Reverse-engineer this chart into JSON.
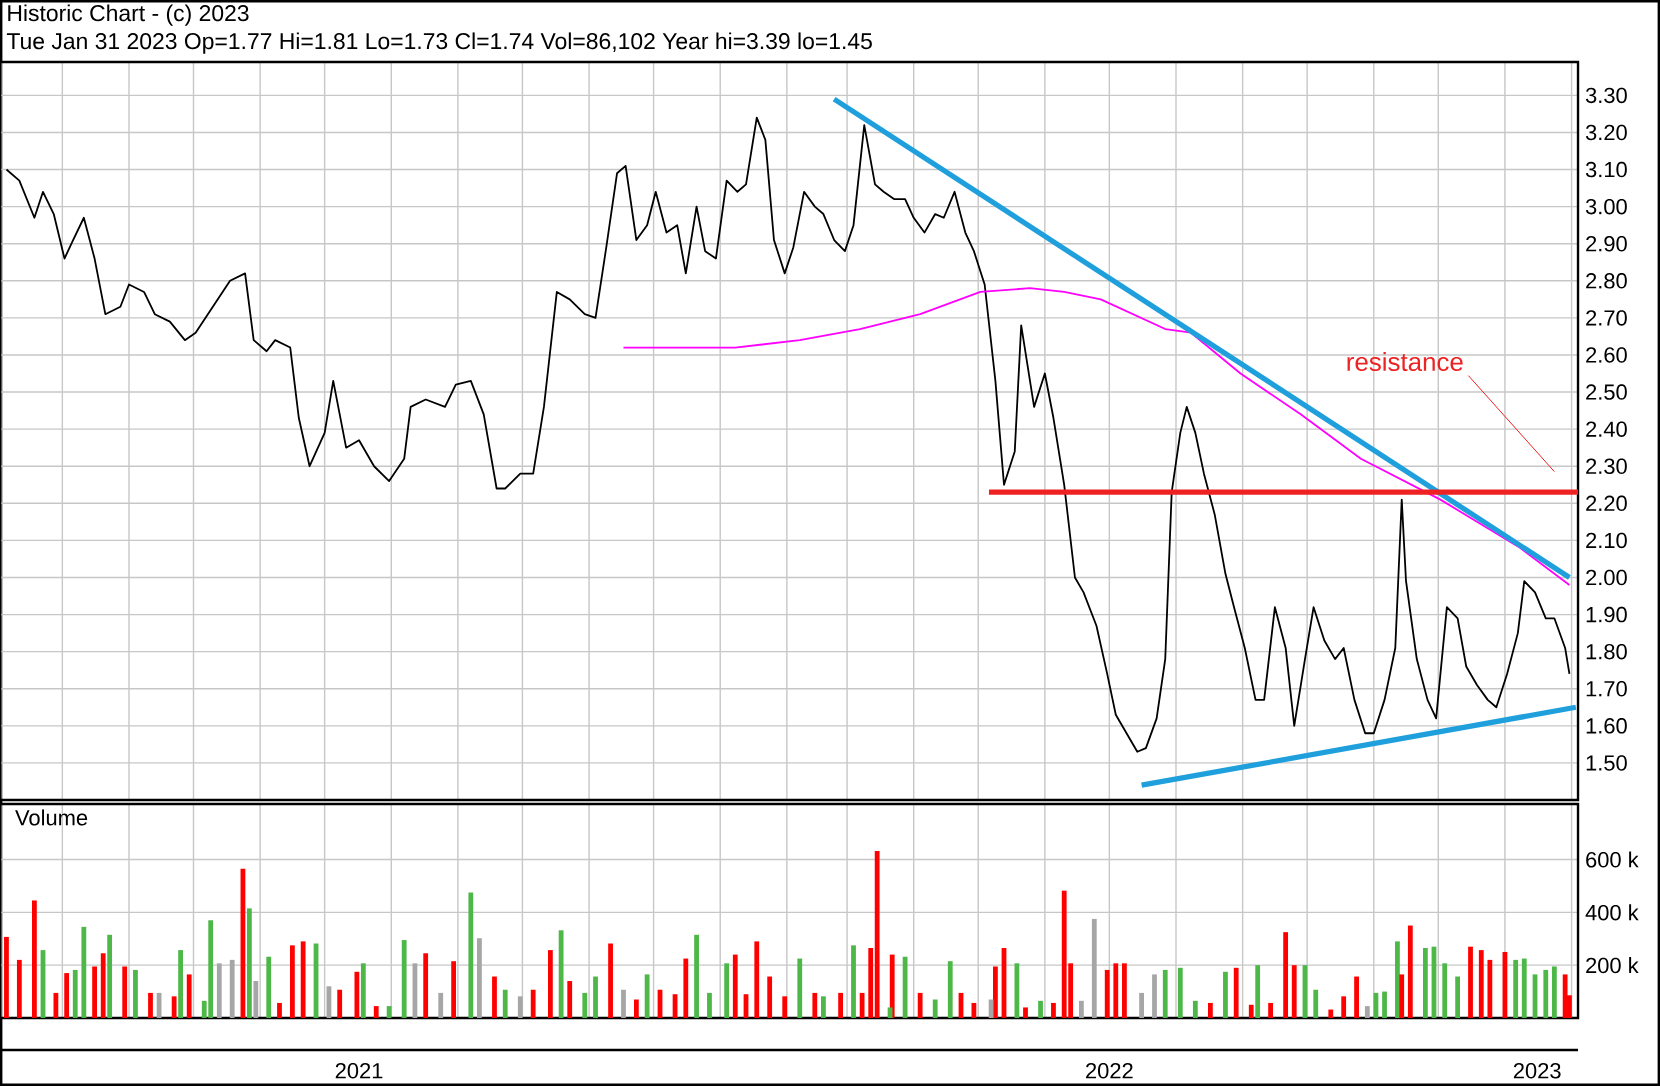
{
  "chart_data": [
    {
      "type": "line",
      "title": "Historic Chart - (c) 2023",
      "subtitle": "Tue Jan 31 2023 Op=1.77 Hi=1.81 Lo=1.73 Cl=1.74 Vol=86,102 Year hi=3.39 lo=1.45",
      "xlim": [
        "2021-01-31",
        "2023-02-04"
      ],
      "ylim": [
        1.4,
        3.39
      ],
      "grid": true,
      "tick_labels": "y",
      "xticks": [
        {
          "value": "2021-02-01",
          "label": null
        },
        {
          "value": "2021-03-01",
          "label": null
        },
        {
          "value": "2021-04-01",
          "label": null
        },
        {
          "value": "2021-05-01",
          "label": null
        },
        {
          "value": "2021-06-01",
          "label": null
        },
        {
          "value": "2021-07-01",
          "label": null
        },
        {
          "value": "2021-08-01",
          "label": null
        },
        {
          "value": "2021-09-01",
          "label": null
        },
        {
          "value": "2021-10-01",
          "label": null
        },
        {
          "value": "2021-11-01",
          "label": null
        },
        {
          "value": "2021-12-01",
          "label": null
        },
        {
          "value": "2022-01-01",
          "label": null
        },
        {
          "value": "2022-02-01",
          "label": null
        },
        {
          "value": "2022-03-01",
          "label": null
        },
        {
          "value": "2022-04-01",
          "label": null
        },
        {
          "value": "2022-05-01",
          "label": null
        },
        {
          "value": "2022-06-01",
          "label": null
        },
        {
          "value": "2022-07-01",
          "label": null
        },
        {
          "value": "2022-08-01",
          "label": null
        },
        {
          "value": "2022-09-01",
          "label": null
        },
        {
          "value": "2022-10-01",
          "label": null
        },
        {
          "value": "2022-11-01",
          "label": null
        },
        {
          "value": "2022-12-01",
          "label": null
        },
        {
          "value": "2023-01-01",
          "label": null
        },
        {
          "value": "2023-02-01",
          "label": null
        }
      ],
      "yticks": [
        {
          "value": 1.5,
          "label": "1.50"
        },
        {
          "value": 1.6,
          "label": "1.60"
        },
        {
          "value": 1.7,
          "label": "1.70"
        },
        {
          "value": 1.8,
          "label": "1.80"
        },
        {
          "value": 1.9,
          "label": "1.90"
        },
        {
          "value": 2.0,
          "label": "2.00"
        },
        {
          "value": 2.1,
          "label": "2.10"
        },
        {
          "value": 2.2,
          "label": "2.20"
        },
        {
          "value": 2.3,
          "label": "2.30"
        },
        {
          "value": 2.4,
          "label": "2.40"
        },
        {
          "value": 2.5,
          "label": "2.50"
        },
        {
          "value": 2.6,
          "label": "2.60"
        },
        {
          "value": 2.7,
          "label": "2.70"
        },
        {
          "value": 2.8,
          "label": "2.80"
        },
        {
          "value": 2.9,
          "label": "2.90"
        },
        {
          "value": 3.0,
          "label": "3.00"
        },
        {
          "value": 3.1,
          "label": "3.10"
        },
        {
          "value": 3.2,
          "label": "3.20"
        },
        {
          "value": 3.3,
          "label": "3.30"
        }
      ],
      "annotations": [
        "resistance"
      ],
      "series": [
        {
          "color": "#000000",
          "x": [
            "2021-02-03",
            "2021-02-09",
            "2021-02-16",
            "2021-02-20",
            "2021-02-25",
            "2021-03-02",
            "2021-03-06",
            "2021-03-11",
            "2021-03-16",
            "2021-03-21",
            "2021-03-28",
            "2021-04-01",
            "2021-04-08",
            "2021-04-13",
            "2021-04-20",
            "2021-04-27",
            "2021-05-02",
            "2021-05-10",
            "2021-05-18",
            "2021-05-25",
            "2021-05-29",
            "2021-06-04",
            "2021-06-08",
            "2021-06-15",
            "2021-06-19",
            "2021-06-24",
            "2021-07-01",
            "2021-07-05",
            "2021-07-11",
            "2021-07-17",
            "2021-07-24",
            "2021-07-31",
            "2021-08-07",
            "2021-08-10",
            "2021-08-17",
            "2021-08-26",
            "2021-08-31",
            "2021-09-07",
            "2021-09-13",
            "2021-09-19",
            "2021-09-23",
            "2021-09-30",
            "2021-10-06",
            "2021-10-11",
            "2021-10-17",
            "2021-10-23",
            "2021-10-30",
            "2021-11-04",
            "2021-11-09",
            "2021-11-14",
            "2021-11-18",
            "2021-11-23",
            "2021-11-28",
            "2021-12-02",
            "2021-12-07",
            "2021-12-12",
            "2021-12-16",
            "2021-12-21",
            "2021-12-25",
            "2021-12-30",
            "2022-01-04",
            "2022-01-09",
            "2022-01-13",
            "2022-01-18",
            "2022-01-22",
            "2022-01-26",
            "2022-01-31",
            "2022-02-04",
            "2022-02-09",
            "2022-02-14",
            "2022-02-18",
            "2022-02-23",
            "2022-02-28",
            "2022-03-04",
            "2022-03-09",
            "2022-03-14",
            "2022-03-18",
            "2022-03-23",
            "2022-03-28",
            "2022-04-01",
            "2022-04-06",
            "2022-04-11",
            "2022-04-15",
            "2022-04-20",
            "2022-04-25",
            "2022-04-29",
            "2022-05-04",
            "2022-05-09",
            "2022-05-13",
            "2022-05-18",
            "2022-05-21",
            "2022-05-27",
            "2022-06-01",
            "2022-06-05",
            "2022-06-10",
            "2022-06-15",
            "2022-06-19",
            "2022-06-25",
            "2022-06-30",
            "2022-07-04",
            "2022-07-09",
            "2022-07-14",
            "2022-07-18",
            "2022-07-23",
            "2022-07-27",
            "2022-07-30",
            "2022-08-03",
            "2022-08-06",
            "2022-08-10",
            "2022-08-14",
            "2022-08-19",
            "2022-08-24",
            "2022-08-28",
            "2022-09-02",
            "2022-09-07",
            "2022-09-11",
            "2022-09-16",
            "2022-09-21",
            "2022-09-25",
            "2022-09-30",
            "2022-10-04",
            "2022-10-09",
            "2022-10-14",
            "2022-10-18",
            "2022-10-23",
            "2022-10-28",
            "2022-11-01",
            "2022-11-06",
            "2022-11-11",
            "2022-11-14",
            "2022-11-16",
            "2022-11-21",
            "2022-11-26",
            "2022-11-30",
            "2022-12-05",
            "2022-12-10",
            "2022-12-14",
            "2022-12-19",
            "2022-12-24",
            "2022-12-28",
            "2023-01-02",
            "2023-01-07",
            "2023-01-10",
            "2023-01-15",
            "2023-01-20",
            "2023-01-24",
            "2023-01-29",
            "2023-01-31"
          ],
          "values": [
            3.1,
            3.07,
            2.97,
            3.04,
            2.98,
            2.86,
            2.91,
            2.97,
            2.86,
            2.71,
            2.73,
            2.79,
            2.77,
            2.71,
            2.69,
            2.64,
            2.66,
            2.73,
            2.8,
            2.82,
            2.64,
            2.61,
            2.64,
            2.62,
            2.43,
            2.3,
            2.39,
            2.53,
            2.35,
            2.37,
            2.3,
            2.26,
            2.32,
            2.46,
            2.48,
            2.46,
            2.52,
            2.53,
            2.44,
            2.24,
            2.24,
            2.28,
            2.28,
            2.46,
            2.77,
            2.75,
            2.71,
            2.7,
            2.89,
            3.09,
            3.11,
            2.91,
            2.95,
            3.04,
            2.93,
            2.95,
            2.82,
            3.0,
            2.88,
            2.86,
            3.07,
            3.04,
            3.06,
            3.24,
            3.18,
            2.91,
            2.82,
            2.89,
            3.04,
            3.0,
            2.98,
            2.91,
            2.88,
            2.95,
            3.22,
            3.06,
            3.04,
            3.02,
            3.02,
            2.97,
            2.93,
            2.98,
            2.97,
            3.04,
            2.93,
            2.88,
            2.79,
            2.53,
            2.25,
            2.34,
            2.68,
            2.46,
            2.55,
            2.43,
            2.25,
            2.0,
            1.96,
            1.87,
            1.74,
            1.63,
            1.58,
            1.53,
            1.54,
            1.62,
            1.78,
            2.23,
            2.39,
            2.46,
            2.39,
            2.28,
            2.17,
            2.01,
            1.92,
            1.81,
            1.67,
            1.67,
            1.92,
            1.81,
            1.6,
            1.78,
            1.92,
            1.83,
            1.78,
            1.81,
            1.67,
            1.58,
            1.58,
            1.67,
            1.81,
            2.21,
            1.99,
            1.78,
            1.67,
            1.62,
            1.92,
            1.89,
            1.76,
            1.71,
            1.67,
            1.65,
            1.74,
            1.85,
            1.99,
            1.96,
            1.89,
            1.89,
            1.81,
            1.74
          ]
        },
        {
          "color": "#ff00ff",
          "x": [
            "2021-11-17",
            "2021-11-25",
            "2022-01-08",
            "2022-02-07",
            "2022-03-07",
            "2022-04-04",
            "2022-05-02",
            "2022-05-25",
            "2022-06-10",
            "2022-06-27",
            "2022-07-27",
            "2022-08-08",
            "2022-08-31",
            "2022-09-28",
            "2022-10-26",
            "2022-12-02",
            "2023-01-08",
            "2023-01-31"
          ],
          "values": [
            2.62,
            2.62,
            2.62,
            2.64,
            2.67,
            2.71,
            2.77,
            2.78,
            2.77,
            2.75,
            2.67,
            2.66,
            2.55,
            2.44,
            2.32,
            2.21,
            2.08,
            1.98
          ]
        },
        {
          "type": "line",
          "color": "#1fa0dc",
          "x": [
            "2022-02-23",
            "2023-01-31"
          ],
          "values": [
            3.29,
            2.0
          ]
        },
        {
          "type": "line",
          "color": "#1fa0dc",
          "x": [
            "2022-07-16",
            "2023-02-03"
          ],
          "values": [
            1.44,
            1.65
          ]
        },
        {
          "type": "line",
          "color": "#ee2222",
          "x": [
            "2022-05-06",
            "2023-02-04"
          ],
          "values": [
            2.23,
            2.23
          ]
        }
      ]
    },
    {
      "type": "bar",
      "title": "Volume",
      "xlim": [
        "2021-01-31",
        "2023-02-04"
      ],
      "ylim": [
        0,
        810000
      ],
      "grid": true,
      "xticks": [
        {
          "value": "2021-02-01",
          "label": null
        },
        {
          "value": "2021-03-01",
          "label": null
        },
        {
          "value": "2021-04-01",
          "label": null
        },
        {
          "value": "2021-05-01",
          "label": null
        },
        {
          "value": "2021-06-01",
          "label": null
        },
        {
          "value": "2021-07-01",
          "label": null
        },
        {
          "value": "2021-08-01",
          "label": null
        },
        {
          "value": "2021-09-01",
          "label": null
        },
        {
          "value": "2021-10-01",
          "label": null
        },
        {
          "value": "2021-11-01",
          "label": null
        },
        {
          "value": "2021-12-01",
          "label": null
        },
        {
          "value": "2022-01-01",
          "label": null
        },
        {
          "value": "2022-02-01",
          "label": null
        },
        {
          "value": "2022-03-01",
          "label": null
        },
        {
          "value": "2022-04-01",
          "label": null
        },
        {
          "value": "2022-05-01",
          "label": null
        },
        {
          "value": "2022-06-01",
          "label": null
        },
        {
          "value": "2022-07-01",
          "label": null
        },
        {
          "value": "2022-08-01",
          "label": null
        },
        {
          "value": "2022-09-01",
          "label": null
        },
        {
          "value": "2022-10-01",
          "label": null
        },
        {
          "value": "2022-11-01",
          "label": null
        },
        {
          "value": "2022-12-01",
          "label": null
        },
        {
          "value": "2023-01-01",
          "label": null
        },
        {
          "value": "2023-02-01",
          "label": null
        },
        {
          "value": "2021-07-17",
          "label": "2021"
        },
        {
          "value": "2022-07-01",
          "label": "2022"
        },
        {
          "value": "2023-01-16",
          "label": "2023"
        }
      ],
      "yticks": [
        {
          "value": 200000,
          "label": "200 k"
        },
        {
          "value": 400000,
          "label": "400 k"
        },
        {
          "value": 600000,
          "label": "600 k"
        }
      ],
      "x": [
        "2021-02-03",
        "2021-02-09",
        "2021-02-16",
        "2021-02-20",
        "2021-02-26",
        "2021-03-03",
        "2021-03-07",
        "2021-03-11",
        "2021-03-16",
        "2021-03-20",
        "2021-03-23",
        "2021-03-30",
        "2021-04-04",
        "2021-04-11",
        "2021-04-15",
        "2021-04-22",
        "2021-04-25",
        "2021-04-29",
        "2021-05-06",
        "2021-05-09",
        "2021-05-13",
        "2021-05-19",
        "2021-05-24",
        "2021-05-27",
        "2021-05-30",
        "2021-06-05",
        "2021-06-10",
        "2021-06-16",
        "2021-06-21",
        "2021-06-27",
        "2021-07-03",
        "2021-07-08",
        "2021-07-16",
        "2021-07-19",
        "2021-07-25",
        "2021-07-31",
        "2021-08-07",
        "2021-08-12",
        "2021-08-17",
        "2021-08-24",
        "2021-08-30",
        "2021-09-07",
        "2021-09-11",
        "2021-09-18",
        "2021-09-23",
        "2021-09-30",
        "2021-10-06",
        "2021-10-14",
        "2021-10-19",
        "2021-10-23",
        "2021-10-30",
        "2021-11-04",
        "2021-11-11",
        "2021-11-17",
        "2021-11-23",
        "2021-11-28",
        "2021-12-04",
        "2021-12-11",
        "2021-12-16",
        "2021-12-21",
        "2021-12-27",
        "2022-01-04",
        "2022-01-08",
        "2022-01-13",
        "2022-01-18",
        "2022-01-24",
        "2022-01-31",
        "2022-02-07",
        "2022-02-14",
        "2022-02-18",
        "2022-02-26",
        "2022-03-04",
        "2022-03-08",
        "2022-03-12",
        "2022-03-15",
        "2022-03-21",
        "2022-03-22",
        "2022-03-28",
        "2022-04-04",
        "2022-04-11",
        "2022-04-18",
        "2022-04-23",
        "2022-04-29",
        "2022-05-07",
        "2022-05-09",
        "2022-05-13",
        "2022-05-19",
        "2022-05-23",
        "2022-05-30",
        "2022-06-05",
        "2022-06-10",
        "2022-06-13",
        "2022-06-18",
        "2022-06-24",
        "2022-06-30",
        "2022-07-04",
        "2022-07-08",
        "2022-07-16",
        "2022-07-22",
        "2022-07-27",
        "2022-08-03",
        "2022-08-10",
        "2022-08-17",
        "2022-08-24",
        "2022-08-29",
        "2022-09-05",
        "2022-09-08",
        "2022-09-14",
        "2022-09-21",
        "2022-09-25",
        "2022-09-30",
        "2022-10-05",
        "2022-10-12",
        "2022-10-18",
        "2022-10-24",
        "2022-10-29",
        "2022-11-02",
        "2022-11-06",
        "2022-11-12",
        "2022-11-14",
        "2022-11-18",
        "2022-11-25",
        "2022-11-29",
        "2022-12-04",
        "2022-12-10",
        "2022-12-16",
        "2022-12-21",
        "2022-12-25",
        "2023-01-01",
        "2023-01-06",
        "2023-01-10",
        "2023-01-15",
        "2023-01-20",
        "2023-01-24",
        "2023-01-29",
        "2023-01-31"
      ],
      "values": [
        307000,
        220000,
        445000,
        257000,
        95000,
        170000,
        182000,
        345000,
        195000,
        245000,
        315000,
        195000,
        182000,
        95000,
        95000,
        82000,
        257000,
        165000,
        65000,
        370000,
        207000,
        220000,
        565000,
        415000,
        140000,
        232000,
        57000,
        275000,
        290000,
        282000,
        120000,
        107000,
        175000,
        207000,
        45000,
        45000,
        295000,
        207000,
        245000,
        95000,
        215000,
        475000,
        302000,
        157000,
        107000,
        82000,
        107000,
        257000,
        332000,
        140000,
        95000,
        157000,
        282000,
        107000,
        70000,
        165000,
        107000,
        90000,
        225000,
        315000,
        95000,
        207000,
        240000,
        90000,
        290000,
        157000,
        82000,
        225000,
        95000,
        82000,
        95000,
        275000,
        95000,
        265000,
        632000,
        40000,
        240000,
        232000,
        95000,
        70000,
        215000,
        95000,
        57000,
        70000,
        195000,
        265000,
        207000,
        40000,
        65000,
        57000,
        482000,
        207000,
        65000,
        375000,
        182000,
        207000,
        207000,
        95000,
        165000,
        182000,
        190000,
        65000,
        57000,
        175000,
        190000,
        50000,
        200000,
        57000,
        325000,
        200000,
        200000,
        107000,
        32000,
        82000,
        157000,
        45000,
        95000,
        100000,
        290000,
        165000,
        350000,
        265000,
        270000,
        207000,
        157000,
        270000,
        257000,
        220000,
        250000,
        220000,
        225000,
        165000,
        182000,
        195000,
        165000,
        86000
      ],
      "colors": [
        "#ff0000",
        "#ff0000",
        "#ff0000",
        "#4db848",
        "#ff0000",
        "#ff0000",
        "#4db848",
        "#4db848",
        "#ff0000",
        "#ff0000",
        "#4db848",
        "#ff0000",
        "#4db848",
        "#ff0000",
        "#a6a6a6",
        "#ff0000",
        "#4db848",
        "#ff0000",
        "#4db848",
        "#4db848",
        "#a6a6a6",
        "#a6a6a6",
        "#ff0000",
        "#4db848",
        "#a6a6a6",
        "#4db848",
        "#ff0000",
        "#ff0000",
        "#ff0000",
        "#4db848",
        "#a6a6a6",
        "#ff0000",
        "#ff0000",
        "#4db848",
        "#ff0000",
        "#4db848",
        "#4db848",
        "#a6a6a6",
        "#ff0000",
        "#a6a6a6",
        "#ff0000",
        "#4db848",
        "#a6a6a6",
        "#ff0000",
        "#4db848",
        "#a6a6a6",
        "#ff0000",
        "#ff0000",
        "#4db848",
        "#ff0000",
        "#4db848",
        "#4db848",
        "#ff0000",
        "#a6a6a6",
        "#ff0000",
        "#4db848",
        "#ff0000",
        "#ff0000",
        "#ff0000",
        "#4db848",
        "#4db848",
        "#4db848",
        "#ff0000",
        "#ff0000",
        "#ff0000",
        "#ff0000",
        "#ff0000",
        "#4db848",
        "#ff0000",
        "#4db848",
        "#ff0000",
        "#4db848",
        "#ff0000",
        "#ff0000",
        "#ff0000",
        "#4db848",
        "#ff0000",
        "#4db848",
        "#ff0000",
        "#4db848",
        "#4db848",
        "#ff0000",
        "#ff0000",
        "#a6a6a6",
        "#ff0000",
        "#ff0000",
        "#4db848",
        "#ff0000",
        "#4db848",
        "#ff0000",
        "#ff0000",
        "#ff0000",
        "#a6a6a6",
        "#a6a6a6",
        "#ff0000",
        "#ff0000",
        "#ff0000",
        "#a6a6a6",
        "#a6a6a6",
        "#4db848",
        "#4db848",
        "#4db848",
        "#ff0000",
        "#4db848",
        "#ff0000",
        "#ff0000",
        "#4db848",
        "#ff0000",
        "#ff0000",
        "#ff0000",
        "#4db848",
        "#4db848",
        "#ff0000",
        "#ff0000",
        "#ff0000",
        "#a6a6a6",
        "#4db848",
        "#4db848",
        "#4db848",
        "#ff0000",
        "#ff0000",
        "#4db848",
        "#4db848",
        "#4db848",
        "#4db848",
        "#ff0000",
        "#ff0000",
        "#ff0000",
        "#ff0000",
        "#4db848",
        "#4db848",
        "#4db848",
        "#4db848",
        "#4db848",
        "#ff0000",
        "#ff0000"
      ]
    }
  ]
}
